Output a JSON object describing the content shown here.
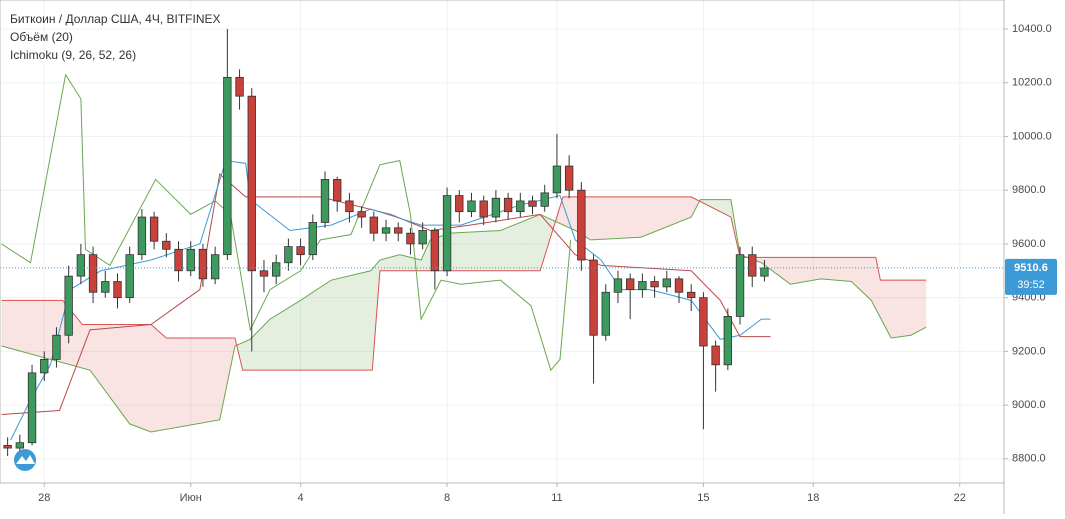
{
  "chart_data": {
    "type": "candlestick",
    "title": "Биткоин / Доллар США, 4Ч, BITFINEX",
    "indicators": [
      "Объём (20)",
      "Ichimoku (9, 26, 52, 26)"
    ],
    "up_color": "#3d9a5f",
    "down_color": "#c9413b",
    "x": [
      -24,
      -16,
      -8,
      0,
      8,
      16,
      24,
      32,
      40,
      48,
      56,
      64,
      72,
      80,
      88,
      96,
      104,
      112,
      120,
      128,
      136,
      144,
      152,
      160,
      168,
      176,
      184,
      192,
      200,
      208,
      216,
      224,
      232,
      240,
      248,
      256,
      264,
      272,
      280,
      288,
      296,
      304,
      312,
      320,
      328,
      336,
      344,
      352,
      360,
      368,
      376,
      384,
      392,
      400,
      408,
      416,
      424,
      432,
      440,
      448,
      456,
      464,
      472
    ],
    "open": [
      8850,
      8840,
      8860,
      9120,
      9170,
      9260,
      9480,
      9560,
      9420,
      9460,
      9400,
      9560,
      9700,
      9610,
      9580,
      9500,
      9580,
      9470,
      9560,
      10220,
      10150,
      9500,
      9480,
      9530,
      9590,
      9560,
      9680,
      9840,
      9760,
      9720,
      9700,
      9640,
      9660,
      9640,
      9600,
      9650,
      9500,
      9780,
      9720,
      9760,
      9700,
      9770,
      9720,
      9760,
      9740,
      9790,
      9890,
      9800,
      9540,
      9260,
      9420,
      9470,
      9430,
      9460,
      9440,
      9470,
      9420,
      9400,
      9220,
      9150,
      9330,
      9560,
      9480
    ],
    "high": [
      8880,
      8890,
      9150,
      9200,
      9290,
      9520,
      9600,
      9590,
      9500,
      9490,
      9590,
      9730,
      9720,
      9640,
      9610,
      9610,
      9600,
      9590,
      10400,
      10250,
      10180,
      9540,
      9560,
      9620,
      9620,
      9710,
      9870,
      9850,
      9790,
      9740,
      9720,
      9690,
      9680,
      9660,
      9680,
      9660,
      9810,
      9800,
      9790,
      9780,
      9800,
      9790,
      9790,
      9780,
      9820,
      10010,
      9930,
      9830,
      9560,
      9450,
      9500,
      9490,
      9490,
      9480,
      9500,
      9480,
      9450,
      9420,
      9240,
      9360,
      9590,
      9590,
      9540
    ],
    "low": [
      8810,
      8820,
      8850,
      9090,
      9140,
      9230,
      9450,
      9380,
      9400,
      9360,
      9380,
      9540,
      9580,
      9550,
      9460,
      9480,
      9440,
      9450,
      9540,
      10100,
      9200,
      9420,
      9450,
      9500,
      9520,
      9540,
      9660,
      9720,
      9680,
      9660,
      9610,
      9610,
      9610,
      9560,
      9580,
      9430,
      9480,
      9680,
      9700,
      9670,
      9680,
      9690,
      9700,
      9710,
      9720,
      9770,
      9770,
      9500,
      9080,
      9240,
      9380,
      9320,
      9400,
      9400,
      9420,
      9380,
      9350,
      8910,
      9050,
      9130,
      9300,
      9440,
      9460
    ],
    "close": [
      8840,
      8860,
      9120,
      9170,
      9260,
      9480,
      9560,
      9420,
      9460,
      9400,
      9560,
      9700,
      9610,
      9580,
      9500,
      9580,
      9470,
      9560,
      10220,
      10150,
      9500,
      9480,
      9530,
      9590,
      9560,
      9680,
      9840,
      9760,
      9720,
      9700,
      9640,
      9660,
      9640,
      9600,
      9650,
      9500,
      9780,
      9720,
      9760,
      9700,
      9770,
      9720,
      9760,
      9740,
      9790,
      9890,
      9800,
      9540,
      9260,
      9420,
      9470,
      9430,
      9460,
      9440,
      9470,
      9420,
      9400,
      9220,
      9150,
      9330,
      9560,
      9480,
      9510.6
    ],
    "ichimoku": {
      "span_a": {
        "color": "#6aa84f",
        "x": [
          -28,
          30,
          56,
          70,
          115,
          125,
          135,
          148,
          168,
          188,
          214,
          220,
          233,
          247,
          253,
          266,
          299,
          325,
          348,
          358,
          391,
          424,
          430,
          450,
          456,
          470,
          489,
          509,
          529,
          542,
          555,
          568,
          578
        ],
        "values": [
          9220,
          9130,
          8930,
          8900,
          8945,
          9220,
          9245,
          9320,
          9390,
          9465,
          9500,
          9540,
          9560,
          9540,
          9615,
          9640,
          9650,
          9710,
          9650,
          9615,
          9625,
          9700,
          9765,
          9765,
          9560,
          9530,
          9450,
          9470,
          9460,
          9390,
          9250,
          9260,
          9290
        ]
      },
      "span_b": {
        "color": "#d9534f",
        "x": [
          -28,
          12,
          25,
          70,
          80,
          125,
          130,
          215,
          220,
          325,
          340,
          424,
          450,
          456,
          545,
          548,
          578
        ],
        "values": [
          9390,
          9390,
          9300,
          9300,
          9250,
          9250,
          9130,
          9130,
          9500,
          9500,
          9775,
          9775,
          9700,
          9550,
          9550,
          9465,
          9465
        ]
      },
      "tenkan": {
        "color": "#3c9ad6",
        "x": [
          -22,
          -9,
          4,
          17,
          37,
          70,
          102,
          119,
          132,
          135,
          161,
          188,
          214,
          247,
          273,
          312,
          338,
          348,
          365,
          378,
          397,
          424,
          443,
          456,
          470,
          476
        ],
        "values": [
          8870,
          9020,
          9150,
          9430,
          9500,
          9540,
          9600,
          9910,
          9900,
          9765,
          9650,
          9670,
          9730,
          9670,
          9670,
          9745,
          9780,
          9615,
          9540,
          9430,
          9430,
          9390,
          9245,
          9260,
          9320,
          9320
        ]
      },
      "kijun": {
        "color": "#b84a4a",
        "x": [
          -28,
          10,
          30,
          70,
          102,
          115,
          132,
          181,
          227,
          253,
          279,
          325,
          348,
          365,
          424,
          443,
          456,
          476
        ],
        "values": [
          8965,
          8980,
          9280,
          9300,
          9430,
          9860,
          9775,
          9775,
          9710,
          9650,
          9670,
          9710,
          9560,
          9520,
          9500,
          9390,
          9255,
          9255
        ]
      },
      "chikou": {
        "color": "#6aa84f",
        "x": [
          -28,
          -9,
          14,
          24,
          27,
          43,
          73,
          96,
          112,
          122,
          135,
          148,
          168,
          181,
          201,
          220,
          233,
          240,
          247,
          260,
          273,
          299,
          319,
          332,
          338,
          345
        ],
        "values": [
          9600,
          9530,
          10230,
          10140,
          9580,
          9520,
          9840,
          9710,
          9760,
          9710,
          9280,
          9430,
          9500,
          9615,
          9635,
          9895,
          9910,
          9710,
          9320,
          9465,
          9450,
          9465,
          9370,
          9130,
          9170,
          9615
        ]
      }
    },
    "last_price": {
      "value": 9510.6,
      "label": "9510.6"
    },
    "countdown": "39:52",
    "xlim": [
      -29,
      629
    ],
    "ylim": [
      8710,
      10508
    ],
    "xticks": [
      {
        "value": 0,
        "label": "28"
      },
      {
        "value": 96,
        "label": "Июн"
      },
      {
        "value": 168,
        "label": "4"
      },
      {
        "value": 264,
        "label": "8"
      },
      {
        "value": 336,
        "label": "11"
      },
      {
        "value": 432,
        "label": "15"
      },
      {
        "value": 504,
        "label": "18"
      },
      {
        "value": 600,
        "label": "22"
      }
    ],
    "yticks": [
      {
        "value": 8800,
        "label": "8800.0"
      },
      {
        "value": 9000,
        "label": "9000.0"
      },
      {
        "value": 9200,
        "label": "9200.0"
      },
      {
        "value": 9400,
        "label": "9400.0"
      },
      {
        "value": 9600,
        "label": "9600.0"
      },
      {
        "value": 9800,
        "label": "9800.0"
      },
      {
        "value": 10000,
        "label": "10000.0"
      },
      {
        "value": 10200,
        "label": "10200.0"
      },
      {
        "value": 10400,
        "label": "10400.0"
      }
    ],
    "grid": true
  }
}
